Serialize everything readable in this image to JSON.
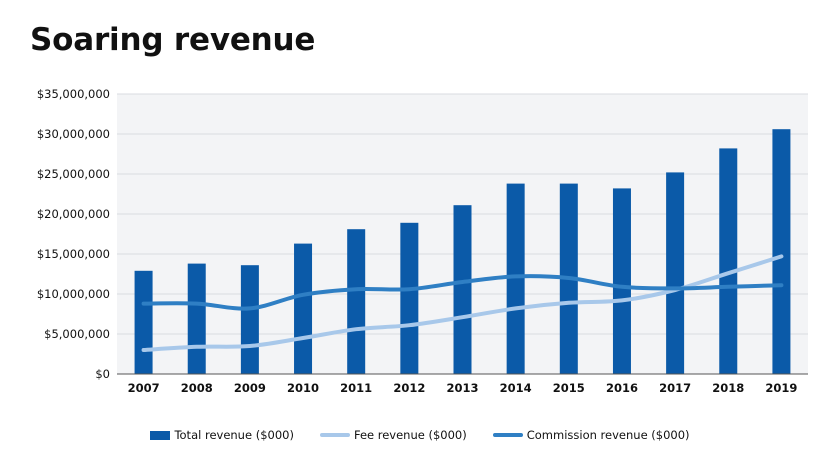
{
  "title": "Soaring revenue",
  "chart_data": {
    "type": "bar",
    "categories": [
      "2007",
      "2008",
      "2009",
      "2010",
      "2011",
      "2012",
      "2013",
      "2014",
      "2015",
      "2016",
      "2017",
      "2018",
      "2019"
    ],
    "ylim": [
      0,
      35000000
    ],
    "yticks": [
      0,
      5000000,
      10000000,
      15000000,
      20000000,
      25000000,
      30000000,
      35000000
    ],
    "ytick_labels": [
      "$0",
      "$5,000,000",
      "$10,000,000",
      "$15,000,000",
      "$20,000,000",
      "$25,000,000",
      "$30,000,000",
      "$35,000,000"
    ],
    "grid": true,
    "legend_position": "bottom",
    "series": [
      {
        "name": "Total revenue ($000)",
        "kind": "bar",
        "color": "#0b5aa8",
        "values": [
          12900000,
          13800000,
          13600000,
          16300000,
          18100000,
          18900000,
          21100000,
          23800000,
          23800000,
          23200000,
          25200000,
          28200000,
          30600000
        ]
      },
      {
        "name": "Fee revenue ($000)",
        "kind": "line",
        "color": "#a8c8ea",
        "values": [
          3000000,
          3400000,
          3500000,
          4500000,
          5600000,
          6100000,
          7100000,
          8200000,
          8900000,
          9200000,
          10500000,
          12600000,
          14700000
        ]
      },
      {
        "name": "Commission revenue ($000)",
        "kind": "line",
        "color": "#2f7fc4",
        "values": [
          8800000,
          8800000,
          8200000,
          9900000,
          10600000,
          10600000,
          11500000,
          12200000,
          12000000,
          10900000,
          10700000,
          10900000,
          11100000
        ]
      }
    ]
  }
}
